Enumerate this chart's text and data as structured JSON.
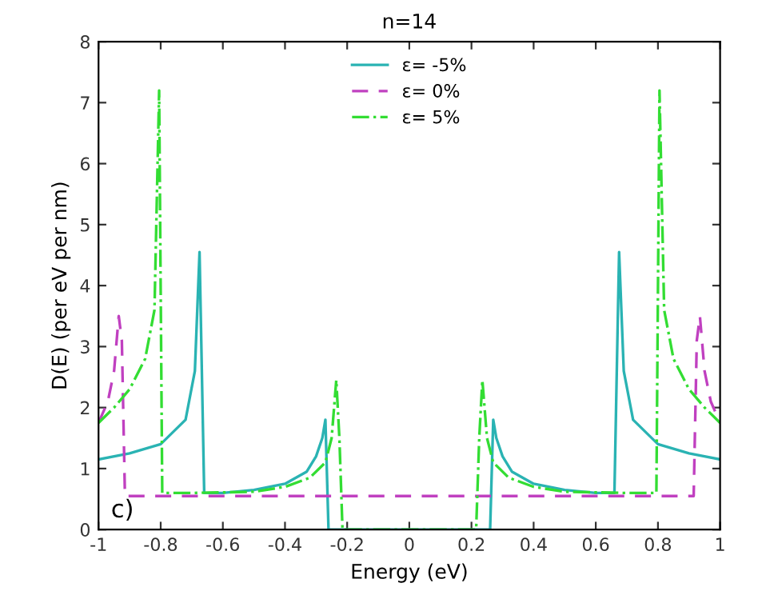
{
  "chart_data": {
    "type": "line",
    "title": "n=14",
    "xlabel": "Energy (eV)",
    "ylabel": "D(E) (per eV per nm)",
    "xlim": [
      -1,
      1
    ],
    "xticks": [
      -1,
      -0.8,
      -0.6,
      -0.4,
      -0.2,
      0,
      0.2,
      0.4,
      0.6,
      0.8,
      1
    ],
    "ylim": [
      0,
      8
    ],
    "yticks": [
      0,
      1,
      2,
      3,
      4,
      5,
      6,
      7,
      8
    ],
    "grid": false,
    "legend": "top",
    "annotations": [
      "c)"
    ],
    "series": [
      {
        "name": "ε= -5%",
        "color": "#2ab3b3",
        "line_style": "solid",
        "x": [
          -1,
          -0.9,
          -0.8,
          -0.72,
          -0.69,
          -0.675,
          -0.66,
          -0.6,
          -0.5,
          -0.4,
          -0.33,
          -0.3,
          -0.28,
          -0.27,
          -0.26,
          0,
          0.26,
          0.27,
          0.28,
          0.3,
          0.33,
          0.4,
          0.5,
          0.6,
          0.66,
          0.675,
          0.69,
          0.72,
          0.8,
          0.9,
          1
        ],
        "values": [
          1.15,
          1.25,
          1.4,
          1.8,
          2.6,
          4.55,
          0.6,
          0.6,
          0.65,
          0.75,
          0.95,
          1.2,
          1.5,
          1.8,
          0,
          0,
          0,
          1.8,
          1.5,
          1.2,
          0.95,
          0.75,
          0.65,
          0.6,
          0.6,
          4.55,
          2.6,
          1.8,
          1.4,
          1.25,
          1.15
        ]
      },
      {
        "name": "ε= 0%",
        "color": "#c040c0",
        "line_style": "dashed",
        "x": [
          -1,
          -0.97,
          -0.95,
          -0.935,
          -0.925,
          -0.915,
          0,
          0.915,
          0.925,
          0.935,
          0.95,
          0.97,
          1
        ],
        "values": [
          1.75,
          2.1,
          2.6,
          3.5,
          3.1,
          0.55,
          0.55,
          0.55,
          3.1,
          3.5,
          2.6,
          2.1,
          1.75
        ]
      },
      {
        "name": "ε= 5%",
        "color": "#33dd33",
        "line_style": "dashdot",
        "x": [
          -1,
          -0.95,
          -0.9,
          -0.85,
          -0.82,
          -0.805,
          -0.795,
          -0.7,
          -0.5,
          -0.4,
          -0.32,
          -0.27,
          -0.25,
          -0.235,
          -0.225,
          -0.215,
          0,
          0.215,
          0.225,
          0.235,
          0.25,
          0.27,
          0.32,
          0.4,
          0.5,
          0.7,
          0.795,
          0.805,
          0.82,
          0.85,
          0.9,
          0.95,
          1
        ],
        "values": [
          1.75,
          2.0,
          2.3,
          2.8,
          3.6,
          7.2,
          0.6,
          0.6,
          0.62,
          0.7,
          0.85,
          1.1,
          1.5,
          2.45,
          1.5,
          0,
          0,
          0,
          1.5,
          2.45,
          1.5,
          1.1,
          0.85,
          0.7,
          0.62,
          0.6,
          0.6,
          7.2,
          3.6,
          2.8,
          2.3,
          2.0,
          1.75
        ]
      }
    ]
  }
}
